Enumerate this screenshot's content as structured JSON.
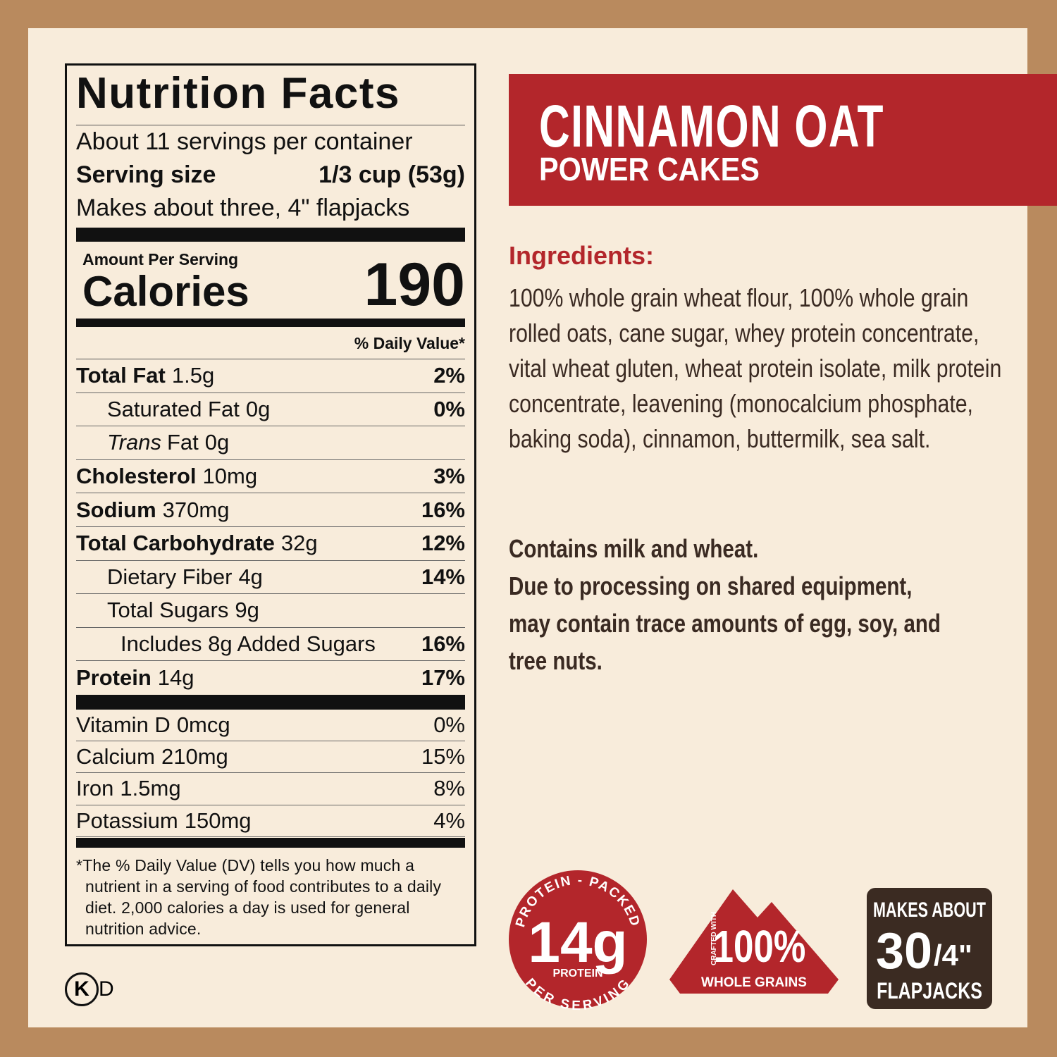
{
  "nutrition_facts": {
    "title": "Nutrition Facts",
    "servings_per_container": "About 11 servings per container",
    "serving_size": {
      "label": "Serving size",
      "value": "1/3 cup (53g)"
    },
    "serving_note": "Makes about three, 4\" flapjacks",
    "amount_per_serving": "Amount Per Serving",
    "calories": {
      "label": "Calories",
      "value": 190
    },
    "daily_value_header": "% Daily Value*",
    "nutrients": [
      {
        "name": "Total Fat",
        "amount": "1.5g",
        "daily_value": "2%"
      },
      {
        "name": "Saturated Fat",
        "amount": "0g",
        "daily_value": "0%"
      },
      {
        "name_italic": "Trans",
        "name": "Fat",
        "amount": "0g"
      },
      {
        "name": "Cholesterol",
        "amount": "10mg",
        "daily_value": "3%"
      },
      {
        "name": "Sodium",
        "amount": "370mg",
        "daily_value": "16%"
      },
      {
        "name": "Total Carbohydrate",
        "amount": "32g",
        "daily_value": "12%"
      },
      {
        "name": "Dietary Fiber",
        "amount": "4g",
        "daily_value": "14%"
      },
      {
        "name": "Total Sugars",
        "amount": "9g"
      },
      {
        "name": "Includes 8g Added Sugars",
        "daily_value": "16%"
      },
      {
        "name": "Protein",
        "amount": "14g",
        "daily_value": "17%"
      }
    ],
    "vitamins": [
      {
        "name": "Vitamin D",
        "amount": "0mcg",
        "daily_value": "0%"
      },
      {
        "name": "Calcium",
        "amount": "210mg",
        "daily_value": "15%"
      },
      {
        "name": "Iron",
        "amount": "1.5mg",
        "daily_value": "8%"
      },
      {
        "name": "Potassium",
        "amount": "150mg",
        "daily_value": "4%"
      }
    ],
    "footnote": "*The % Daily Value (DV) tells you how much a nutrient in a serving of food contributes to a daily diet. 2,000 calories a day is used for general nutrition advice."
  },
  "kosher": {
    "symbol": "K",
    "suffix": "D"
  },
  "product": {
    "name": "CINNAMON OAT",
    "subtitle": "POWER CAKES"
  },
  "ingredients": {
    "heading": "Ingredients:",
    "text": "100% whole grain wheat flour, 100% whole grain rolled oats, cane sugar, whey protein concentrate, vital wheat gluten, wheat protein isolate, milk protein concentrate, leavening (monocalcium phosphate, baking soda), cinnamon, buttermilk, sea salt."
  },
  "allergens": [
    "Contains milk and wheat.",
    "Due to processing on shared equipment, may contain trace amounts of egg, soy, and tree nuts."
  ],
  "badges": {
    "protein": {
      "arc_top": "PROTEIN - PACKED",
      "amount": "14g",
      "label": "PROTEIN",
      "arc_bottom": "PER SERVING"
    },
    "whole_grains": {
      "crafted": "CRAFTED WITH",
      "amount": "100%",
      "label": "WHOLE GRAINS"
    },
    "flapjacks": {
      "top": "MAKES ABOUT",
      "count": "30",
      "size": "/4\"",
      "label": "FLAPJACKS"
    }
  }
}
